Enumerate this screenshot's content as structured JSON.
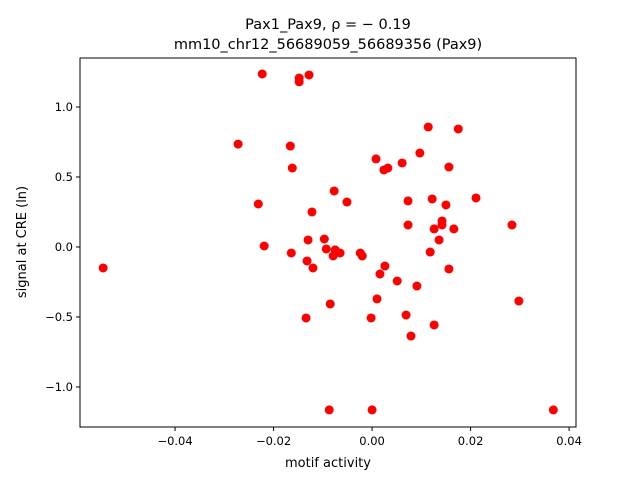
{
  "chart_data": {
    "type": "scatter",
    "title_line1": "Pax1_Pax9, ρ = − 0.19",
    "title_line2": "mm10_chr12_56689059_56689356 (Pax9)",
    "xlabel": "motif activity",
    "ylabel": "signal at CRE (ln)",
    "xlim": [
      -0.0593,
      0.0414
    ],
    "ylim": [
      -1.286,
      1.35
    ],
    "xticks": [
      -0.04,
      -0.02,
      0.0,
      0.02,
      0.04
    ],
    "xtick_labels": [
      "−0.04",
      "−0.02",
      "0.00",
      "0.02",
      "0.04"
    ],
    "yticks": [
      -1.0,
      -0.5,
      0.0,
      0.5,
      1.0
    ],
    "ytick_labels": [
      "−1.0",
      "−0.5",
      "0.0",
      "0.5",
      "1.0"
    ],
    "grid": false,
    "marker_color": "#ff0000",
    "points": [
      [
        -0.0546,
        -0.15
      ],
      [
        -0.0272,
        0.735
      ],
      [
        -0.0223,
        1.236
      ],
      [
        -0.0231,
        0.307
      ],
      [
        -0.0219,
        0.007
      ],
      [
        -0.0148,
        1.207
      ],
      [
        -0.0148,
        1.18
      ],
      [
        -0.0128,
        1.229
      ],
      [
        -0.0166,
        0.721
      ],
      [
        -0.0162,
        0.564
      ],
      [
        -0.0164,
        -0.043
      ],
      [
        -0.0122,
        0.25
      ],
      [
        -0.013,
        0.05
      ],
      [
        -0.0132,
        -0.1
      ],
      [
        -0.012,
        -0.15
      ],
      [
        -0.0134,
        -0.507
      ],
      [
        -0.0097,
        0.057
      ],
      [
        -0.0093,
        -0.014
      ],
      [
        -0.0077,
        0.4
      ],
      [
        -0.0075,
        -0.021
      ],
      [
        -0.0079,
        -0.064
      ],
      [
        -0.0065,
        -0.043
      ],
      [
        -0.0051,
        0.321
      ],
      [
        -0.0085,
        -0.407
      ],
      [
        -0.0087,
        -1.164
      ],
      [
        -0.0024,
        -0.043
      ],
      [
        -0.002,
        -0.064
      ],
      [
        -0.0002,
        -0.507
      ],
      [
        0.0,
        -1.164
      ],
      [
        0.0008,
        0.629
      ],
      [
        0.001,
        -0.371
      ],
      [
        0.0016,
        -0.193
      ],
      [
        0.0026,
        -0.136
      ],
      [
        0.0024,
        0.55
      ],
      [
        0.0032,
        0.564
      ],
      [
        0.0051,
        -0.243
      ],
      [
        0.0061,
        0.6
      ],
      [
        0.0069,
        -0.486
      ],
      [
        0.0073,
        0.329
      ],
      [
        0.0073,
        0.157
      ],
      [
        0.0079,
        -0.636
      ],
      [
        0.0091,
        -0.279
      ],
      [
        0.0097,
        0.671
      ],
      [
        0.0114,
        0.857
      ],
      [
        0.0118,
        -0.036
      ],
      [
        0.0122,
        0.343
      ],
      [
        0.0126,
        0.129
      ],
      [
        0.0126,
        -0.557
      ],
      [
        0.0136,
        0.05
      ],
      [
        0.0142,
        0.186
      ],
      [
        0.0142,
        0.157
      ],
      [
        0.015,
        0.3
      ],
      [
        0.0156,
        0.571
      ],
      [
        0.0156,
        -0.157
      ],
      [
        0.0166,
        0.129
      ],
      [
        0.0175,
        0.843
      ],
      [
        0.0211,
        0.35
      ],
      [
        0.0284,
        0.157
      ],
      [
        0.0298,
        -0.386
      ],
      [
        0.0368,
        -1.164
      ]
    ]
  }
}
